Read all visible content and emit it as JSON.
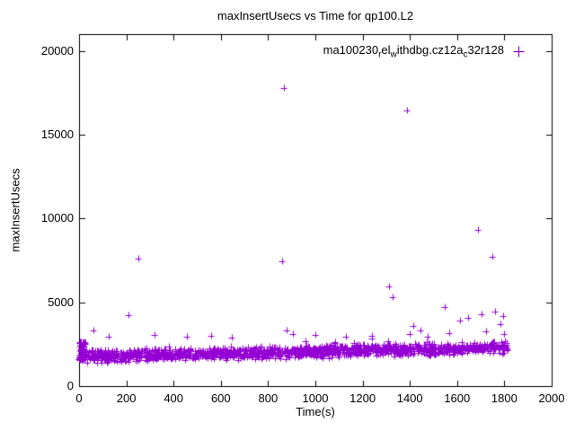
{
  "chart_data": {
    "type": "scatter",
    "title": "maxInsertUsecs vs Time for qp100.L2",
    "xlabel": "Time(s)",
    "ylabel": "maxInsertUsecs",
    "xlim": [
      0,
      2000
    ],
    "ylim": [
      0,
      21000
    ],
    "xticks": [
      0,
      200,
      400,
      600,
      800,
      1000,
      1200,
      1400,
      1600,
      1800,
      2000
    ],
    "yticks": [
      0,
      5000,
      10000,
      15000,
      20000
    ],
    "grid": false,
    "marker": "plus",
    "color": "#9400D3",
    "background": "#ffffff",
    "legend": {
      "position": "top-right-inside",
      "label_plain": "ma100230_rel_withdbg.cz12a_c32r128",
      "segments": [
        {
          "text": "ma100230"
        },
        {
          "sub": "r"
        },
        {
          "text": "el"
        },
        {
          "sub": "w"
        },
        {
          "text": "ithdbg.cz12a"
        },
        {
          "sub": "c"
        },
        {
          "text": "32r128"
        }
      ]
    },
    "outliers": [
      [
        60,
        3300
      ],
      [
        125,
        2950
      ],
      [
        210,
        4250
      ],
      [
        252,
        7600
      ],
      [
        320,
        3050
      ],
      [
        455,
        2950
      ],
      [
        560,
        3000
      ],
      [
        645,
        2900
      ],
      [
        858,
        7450
      ],
      [
        868,
        17800
      ],
      [
        880,
        3300
      ],
      [
        905,
        3100
      ],
      [
        1000,
        3050
      ],
      [
        1130,
        2950
      ],
      [
        1240,
        3000
      ],
      [
        1312,
        5950
      ],
      [
        1328,
        5300
      ],
      [
        1388,
        16450
      ],
      [
        1400,
        3100
      ],
      [
        1415,
        3600
      ],
      [
        1445,
        3300
      ],
      [
        1475,
        2950
      ],
      [
        1548,
        4700
      ],
      [
        1565,
        3150
      ],
      [
        1612,
        3900
      ],
      [
        1648,
        4050
      ],
      [
        1688,
        9300
      ],
      [
        1702,
        4300
      ],
      [
        1722,
        3250
      ],
      [
        1748,
        7700
      ],
      [
        1762,
        4450
      ],
      [
        1782,
        3700
      ],
      [
        1795,
        4200
      ],
      [
        1800,
        3100
      ]
    ],
    "band": {
      "description": "dense baseline band of samples, y drifts from ~1750 up to ~2300 usecs over the run",
      "count": 1400,
      "seed": 7,
      "x_min": 2,
      "x_max": 1815,
      "y_start": 1750,
      "y_end": 2300,
      "spread": 420,
      "y_min_clamp": 1350,
      "start_cluster": {
        "count": 60,
        "x_max": 30,
        "y_min": 1550,
        "y_max": 2650
      }
    }
  }
}
